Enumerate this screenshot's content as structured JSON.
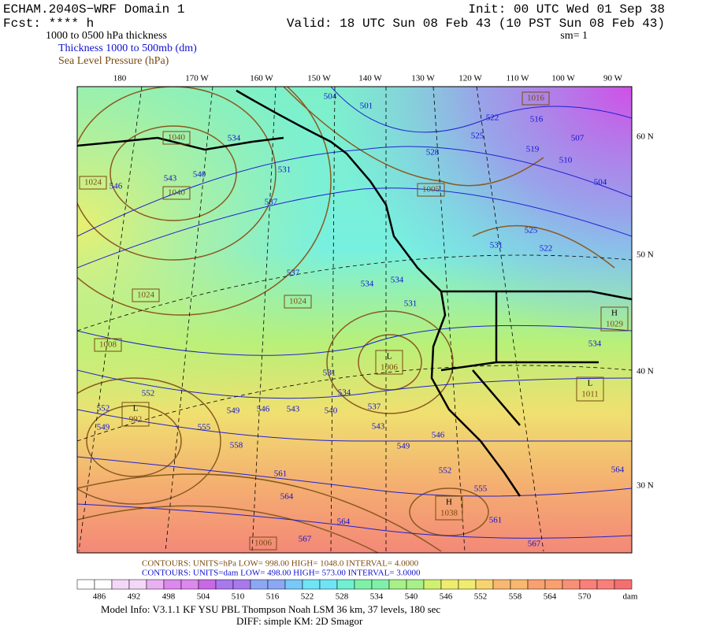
{
  "header": {
    "model": "ECHAM.2040S−WRF Domain 1",
    "fcst": "Fcst: **** h",
    "field": "1000 to 0500 hPa thickness",
    "thickness_legend": "Thickness 1000 to 500mb (dm)",
    "slp_legend": "Sea Level Pressure (hPa)",
    "init": "Init: 00 UTC Wed 01 Sep 38",
    "valid": "Valid: 18 UTC Sun 08 Feb 43 (10 PST Sun 08 Feb 43)",
    "smooth": "sm= 1"
  },
  "map": {
    "longitude_labels": [
      "180",
      "170 W",
      "160 W",
      "150 W",
      "140 W",
      "130 W",
      "120 W",
      "110 W",
      "100 W",
      "90 W"
    ],
    "latitude_labels": [
      "60 N",
      "50 N",
      "40 N",
      "30 N"
    ],
    "thickness_labels": [
      "504",
      "501",
      "522",
      "516",
      "507",
      "525",
      "519",
      "510",
      "528",
      "534",
      "504",
      "531",
      "543",
      "540",
      "546",
      "537",
      "525",
      "531",
      "522",
      "537",
      "534",
      "534",
      "531",
      "531",
      "534",
      "552",
      "549",
      "546",
      "543",
      "540",
      "537",
      "543",
      "546",
      "552",
      "549",
      "555",
      "558",
      "549",
      "552",
      "561",
      "564",
      "555",
      "561",
      "564",
      "567",
      "567",
      "564",
      "534"
    ],
    "pressure_labels": [
      {
        "label": "1040"
      },
      {
        "label": "1040"
      },
      {
        "label": "1024"
      },
      {
        "label": "1005"
      },
      {
        "label": "1024"
      },
      {
        "label": "1024"
      },
      {
        "label": "1008"
      },
      {
        "label": "1006"
      },
      {
        "label": "1016"
      },
      {
        "mark": "L",
        "label": "1006"
      },
      {
        "mark": "L",
        "label": "992"
      },
      {
        "mark": "H",
        "label": "1029"
      },
      {
        "mark": "L",
        "label": "1011"
      },
      {
        "mark": "H",
        "label": "1038"
      }
    ]
  },
  "contour_info": {
    "slp": "CONTOURS:  UNITS=hPa  LOW=   998.00      HIGH=  1048.0      INTERVAL=   4.0000",
    "thickness": "CONTOURS:  UNITS=dam  LOW=   498.00      HIGH=   573.00      INTERVAL=   3.0000"
  },
  "colorbar": {
    "ticks": [
      486,
      492,
      498,
      504,
      510,
      516,
      522,
      528,
      534,
      540,
      546,
      552,
      558,
      564,
      570
    ],
    "unit": "dam"
  },
  "footer": {
    "model_info": "Model Info: V3.1.1    KF      YSU PBL    Thompson      Noah LSM   36 km,    37 levels,   180 sec",
    "diff": "DIFF: simple KM: 2D Smagor"
  }
}
